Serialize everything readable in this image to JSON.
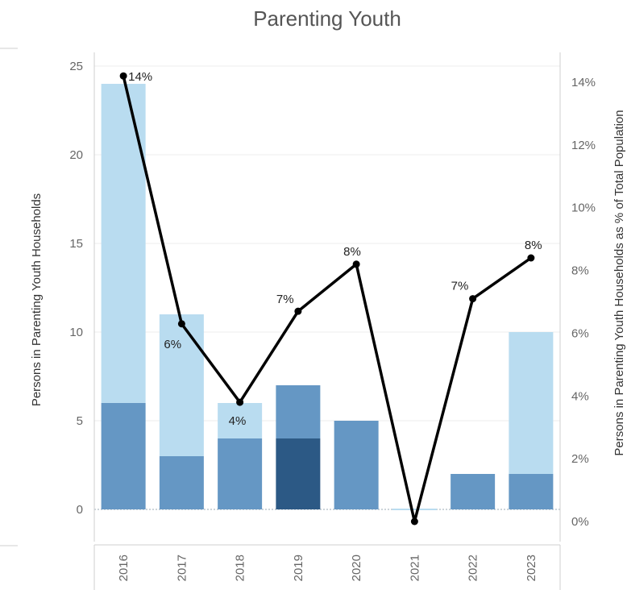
{
  "chart_data": {
    "type": "bar+line",
    "title": "Parenting Youth",
    "categories": [
      "2016",
      "2017",
      "2018",
      "2019",
      "2020",
      "2021",
      "2022",
      "2023"
    ],
    "bar_segments": [
      {
        "name": "",
        "color": "#6597c4",
        "values": [
          6,
          3,
          4,
          0,
          5,
          0,
          2,
          2
        ]
      },
      {
        "name": "",
        "color": "#2c5985",
        "values": [
          0,
          0,
          0,
          4,
          0,
          0,
          0,
          0
        ]
      },
      {
        "name": "",
        "color": "#6597c4",
        "values": [
          0,
          0,
          0,
          3,
          0,
          0,
          0,
          0
        ]
      },
      {
        "name": "",
        "color": "#b9dcf0",
        "values": [
          18,
          8,
          2,
          0,
          0,
          0,
          0,
          8
        ]
      }
    ],
    "bar_totals": [
      24,
      11,
      6,
      7,
      5,
      0,
      2,
      10
    ],
    "line_series": {
      "name": "",
      "color": "#000000",
      "values": [
        14.2,
        6.3,
        3.8,
        6.7,
        8.2,
        0,
        7.1,
        8.4
      ],
      "labels": [
        "14%",
        "6%",
        "4%",
        "7%",
        "8%",
        "",
        "7%",
        "8%"
      ]
    },
    "ylabel_left": "Persons in Parenting Youth Households",
    "ylabel_right": "Persons in Parenting Youth Households as % of Total Population",
    "ylim_left": [
      0,
      25
    ],
    "ylim_right": [
      0,
      14
    ],
    "left_ticks": [
      "0",
      "5",
      "10",
      "15",
      "20",
      "25"
    ],
    "right_ticks": [
      "0%",
      "2%",
      "4%",
      "6%",
      "8%",
      "10%",
      "12%",
      "14%"
    ],
    "grid": true
  }
}
